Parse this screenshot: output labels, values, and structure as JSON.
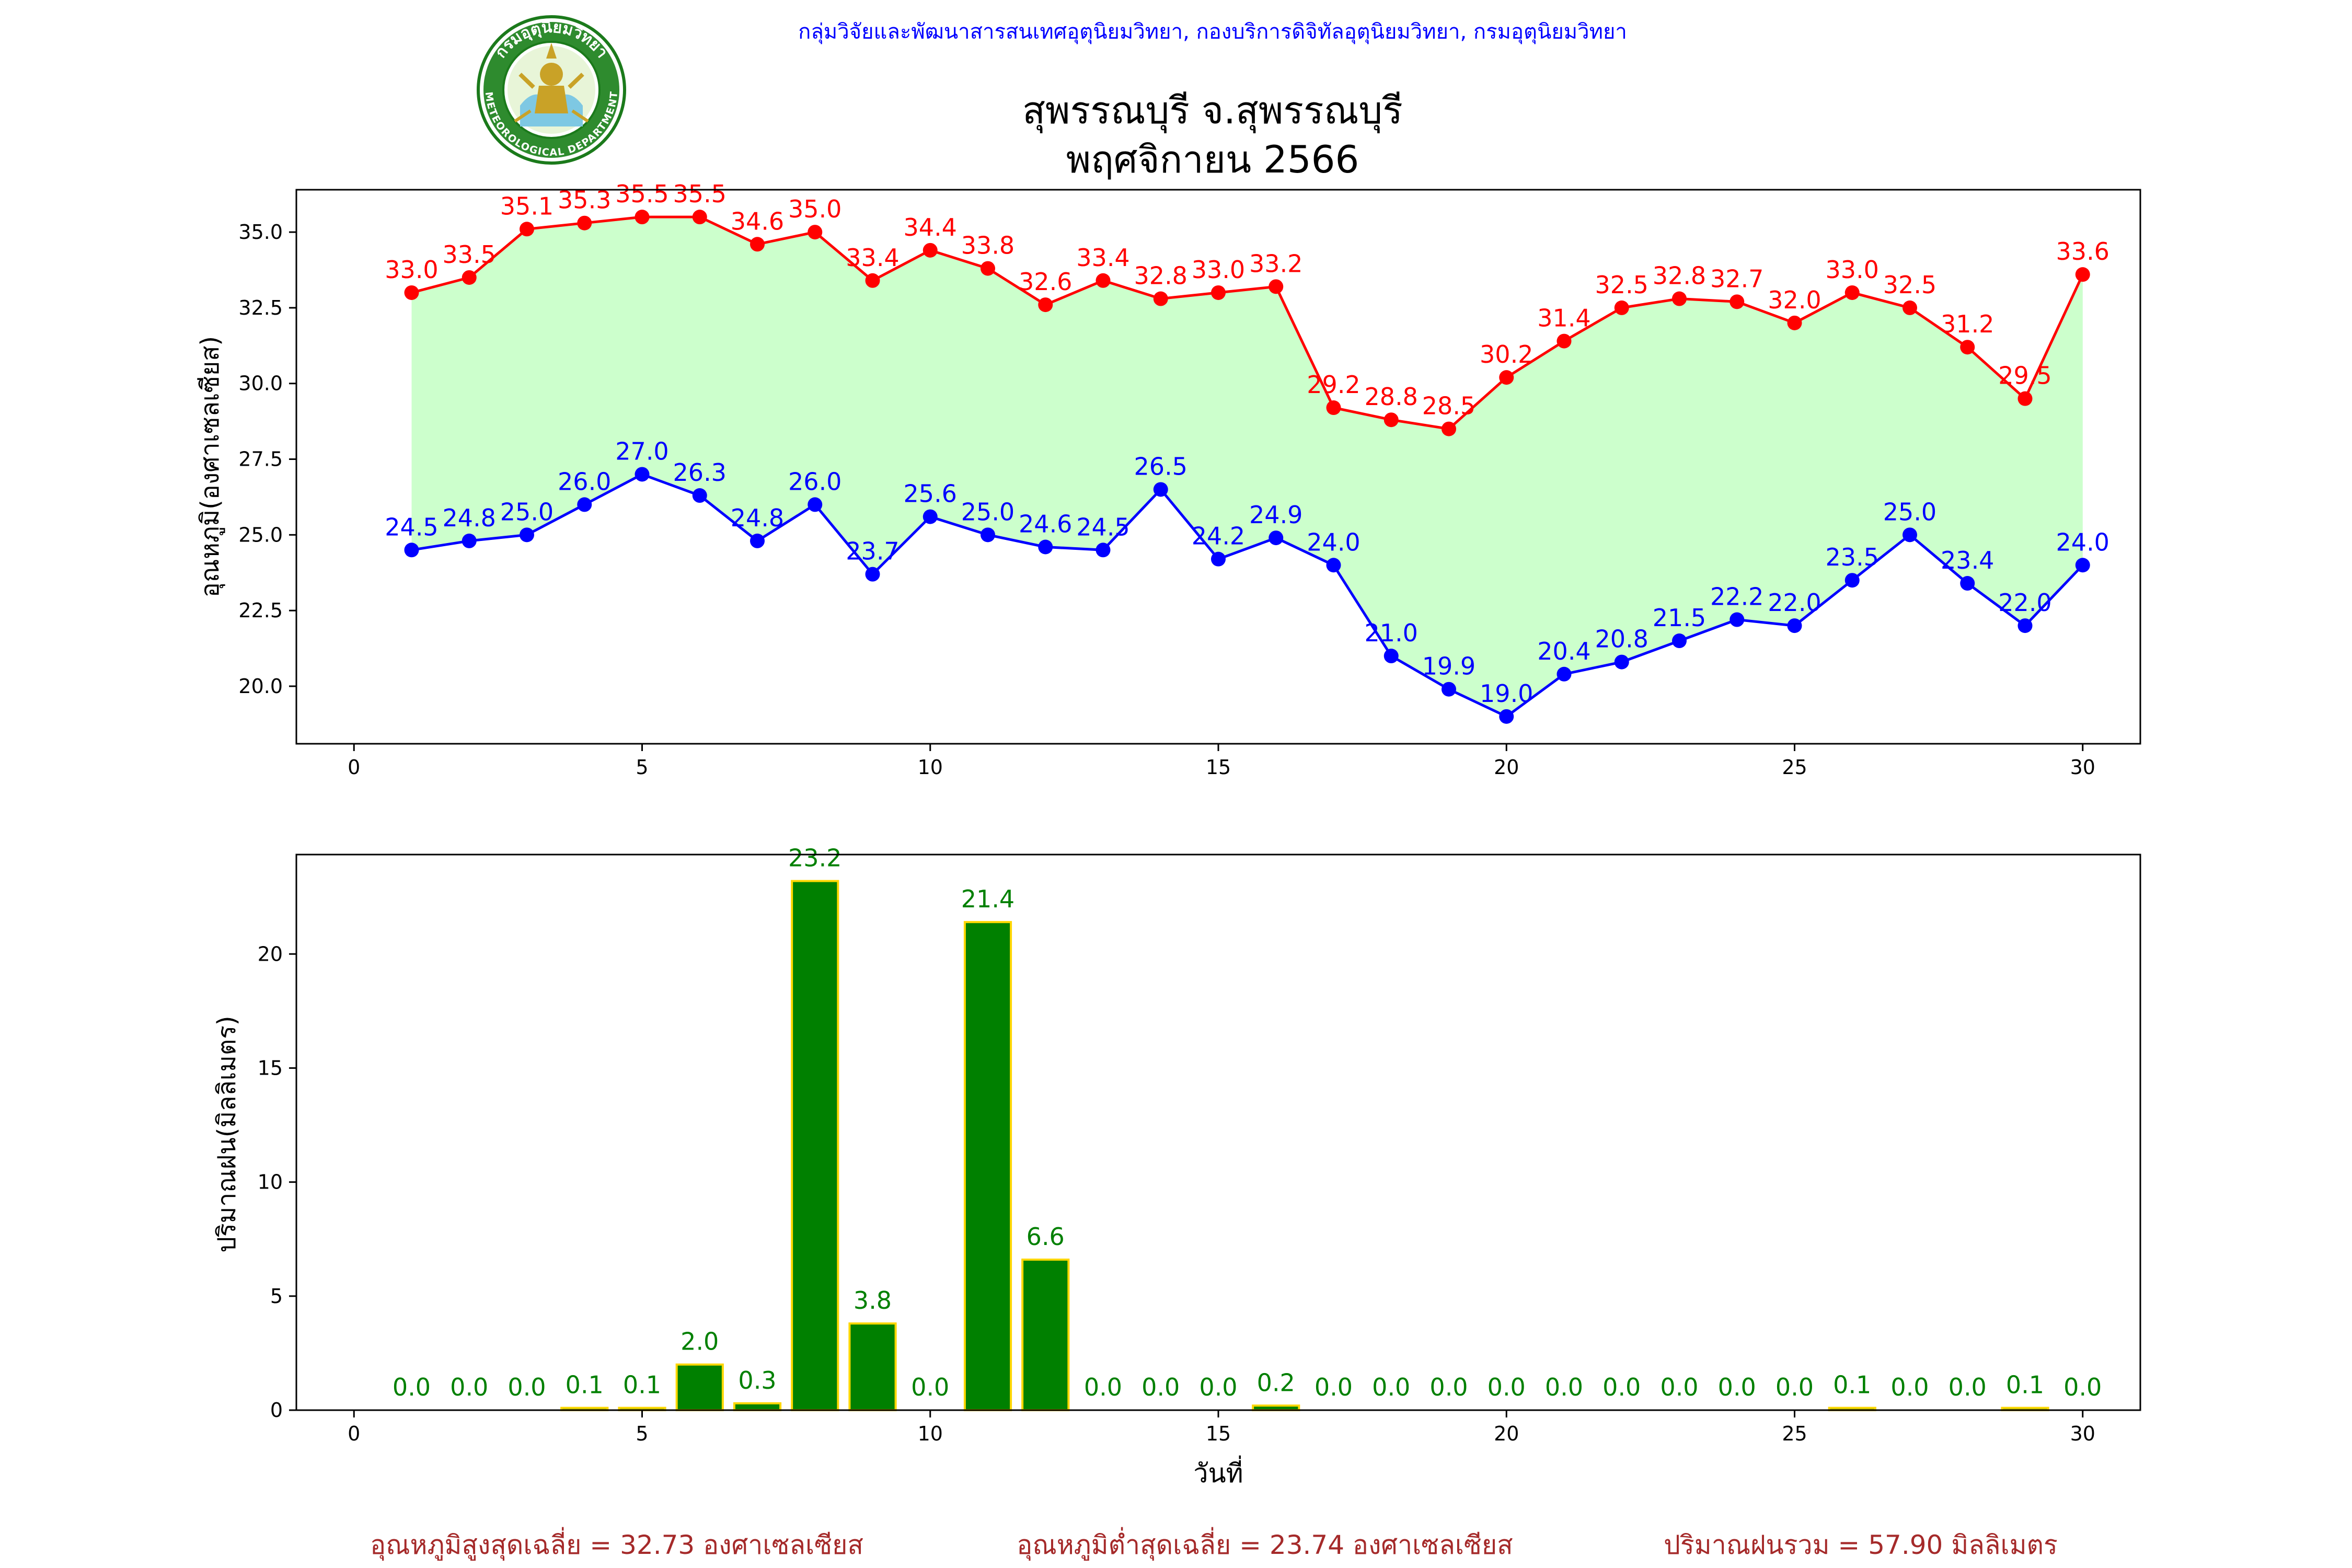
{
  "header": {
    "org_line": "กลุ่มวิจัยและพัฒนาสารสนเทศอุตุนิยมวิทยา, กองบริการดิจิทัลอุตุนิยมวิทยา, กรมอุตุนิยมวิทยา",
    "title_station": "สุพรรณบุรี จ.สุพรรณบุรี",
    "title_period": "พฤศจิกายน 2566",
    "logo_top_text": "กรมอุตุนิยมวิทยา",
    "logo_bottom_text": "METEOROLOGICAL DEPARTMENT"
  },
  "colors": {
    "max_line": "#ff0000",
    "min_line": "#0000ff",
    "band_fill": "#ccffcc",
    "rain_bar": "#008000",
    "rain_edge": "#ffd700",
    "rain_label": "#008000",
    "org_line": "#0000ff",
    "summary": "#a52a2a"
  },
  "chart_data": [
    {
      "type": "line",
      "ylabel": "อุณหภูมิ(องศาเซลเซียส)",
      "xlabel": "",
      "xlim": [
        -1,
        31
      ],
      "ylim": [
        18.1,
        36.4
      ],
      "xticks": [
        0,
        5,
        10,
        15,
        20,
        25,
        30
      ],
      "yticks": [
        20.0,
        22.5,
        25.0,
        27.5,
        30.0,
        32.5,
        35.0
      ],
      "fill_between": true,
      "x": [
        1,
        2,
        3,
        4,
        5,
        6,
        7,
        8,
        9,
        10,
        11,
        12,
        13,
        14,
        15,
        16,
        17,
        18,
        19,
        20,
        21,
        22,
        23,
        24,
        25,
        26,
        27,
        28,
        29,
        30
      ],
      "series": [
        {
          "name": "max",
          "values": [
            33.0,
            33.5,
            35.1,
            35.3,
            35.5,
            35.5,
            34.6,
            35.0,
            33.4,
            34.4,
            33.8,
            32.6,
            33.4,
            32.8,
            33.0,
            33.2,
            29.2,
            28.8,
            28.5,
            30.2,
            31.4,
            32.5,
            32.8,
            32.7,
            32.0,
            33.0,
            32.5,
            31.2,
            29.5,
            33.6
          ]
        },
        {
          "name": "min",
          "values": [
            24.5,
            24.8,
            25.0,
            26.0,
            27.0,
            26.3,
            24.8,
            26.0,
            23.7,
            25.6,
            25.0,
            24.6,
            24.5,
            26.5,
            24.2,
            24.9,
            24.0,
            21.0,
            19.9,
            19.0,
            20.4,
            20.8,
            21.5,
            22.2,
            22.0,
            23.5,
            25.0,
            23.4,
            22.0,
            24.0
          ]
        }
      ]
    },
    {
      "type": "bar",
      "ylabel": "ปริมาณฝน(มิลลิเมตร)",
      "xlabel": "วันที่",
      "xlim": [
        -1,
        31
      ],
      "ylim": [
        0,
        24.36
      ],
      "xticks": [
        0,
        5,
        10,
        15,
        20,
        25,
        30
      ],
      "yticks": [
        0,
        5,
        10,
        15,
        20
      ],
      "x": [
        1,
        2,
        3,
        4,
        5,
        6,
        7,
        8,
        9,
        10,
        11,
        12,
        13,
        14,
        15,
        16,
        17,
        18,
        19,
        20,
        21,
        22,
        23,
        24,
        25,
        26,
        27,
        28,
        29,
        30
      ],
      "values": [
        0.0,
        0.0,
        0.0,
        0.1,
        0.1,
        2.0,
        0.3,
        23.2,
        3.8,
        0.0,
        21.4,
        6.6,
        0.0,
        0.0,
        0.0,
        0.2,
        0.0,
        0.0,
        0.0,
        0.0,
        0.0,
        0.0,
        0.0,
        0.0,
        0.0,
        0.1,
        0.0,
        0.0,
        0.1,
        0.0
      ]
    }
  ],
  "summary": {
    "avg_max": "อุณหภูมิสูงสุดเฉลี่ย = 32.73 องศาเซลเซียส",
    "avg_min": "อุณหภูมิต่ำสุดเฉลี่ย = 23.74 องศาเซลเซียส",
    "total_rain": "ปริมาณฝนรวม = 57.90 มิลลิเมตร"
  }
}
